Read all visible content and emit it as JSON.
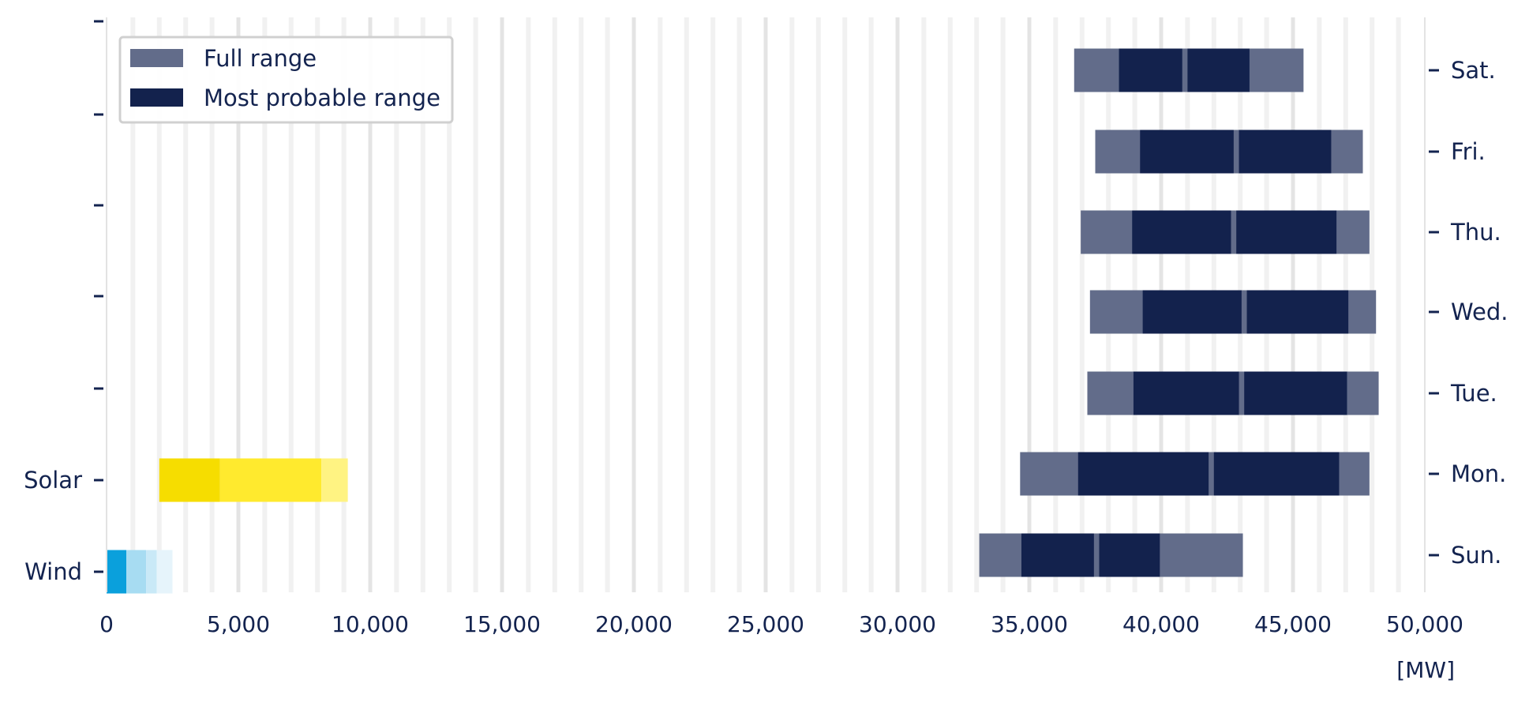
{
  "chart_data": {
    "type": "bar",
    "orientation": "horizontal",
    "unit_label": "[MW]",
    "xlim": [
      0,
      50000
    ],
    "x_ticks": [
      0,
      5000,
      10000,
      15000,
      20000,
      25000,
      30000,
      35000,
      40000,
      45000,
      50000
    ],
    "x_tick_labels": [
      "0",
      "5,000",
      "10,000",
      "15,000",
      "20,000",
      "25,000",
      "30,000",
      "35,000",
      "40,000",
      "45,000",
      "50,000"
    ],
    "grid": "vertical, every 1,000",
    "legend_position": "top-left",
    "legend": [
      {
        "label": "Full range",
        "color": "#626c8a"
      },
      {
        "label": "Most probable range",
        "color": "#13224d"
      }
    ],
    "left_categories": [
      "Wind",
      "Solar"
    ],
    "right_categories": [
      "Sun.",
      "Mon.",
      "Tue.",
      "Wed.",
      "Thu.",
      "Fri.",
      "Sat."
    ],
    "renewables": [
      {
        "name": "Wind",
        "segments": [
          {
            "from": 0,
            "to": 750,
            "color": "#0aa0dc"
          },
          {
            "from": 750,
            "to": 1500,
            "color": "#a7dcf2"
          },
          {
            "from": 1500,
            "to": 1900,
            "color": "#c9e9f7"
          },
          {
            "from": 1900,
            "to": 2500,
            "color": "#e6f4fb"
          }
        ]
      },
      {
        "name": "Solar",
        "segments": [
          {
            "from": 2000,
            "to": 4300,
            "color": "#f6dd00"
          },
          {
            "from": 4300,
            "to": 8150,
            "color": "#ffea2e"
          },
          {
            "from": 8150,
            "to": 9150,
            "color": "#fff382"
          }
        ]
      }
    ],
    "days": [
      {
        "name": "Sun.",
        "full_min": 33100,
        "prob_min": 34700,
        "morning_max": 37450,
        "evening_min": 37650,
        "prob_max": 39950,
        "full_max": 43100
      },
      {
        "name": "Mon.",
        "full_min": 34650,
        "prob_min": 36850,
        "morning_max": 41800,
        "evening_min": 42000,
        "prob_max": 46750,
        "full_max": 47900
      },
      {
        "name": "Tue.",
        "full_min": 37200,
        "prob_min": 38950,
        "morning_max": 42950,
        "evening_min": 43150,
        "prob_max": 47050,
        "full_max": 48250
      },
      {
        "name": "Wed.",
        "full_min": 37300,
        "prob_min": 39300,
        "morning_max": 43050,
        "evening_min": 43250,
        "prob_max": 47100,
        "full_max": 48150
      },
      {
        "name": "Thu.",
        "full_min": 36950,
        "prob_min": 38900,
        "morning_max": 42650,
        "evening_min": 42850,
        "prob_max": 46650,
        "full_max": 47900
      },
      {
        "name": "Fri.",
        "full_min": 37500,
        "prob_min": 39200,
        "morning_max": 42750,
        "evening_min": 42950,
        "prob_max": 46450,
        "full_max": 47650
      },
      {
        "name": "Sat.",
        "full_min": 36700,
        "prob_min": 38400,
        "morning_max": 40800,
        "evening_min": 41000,
        "prob_max": 43350,
        "full_max": 45400
      }
    ]
  }
}
